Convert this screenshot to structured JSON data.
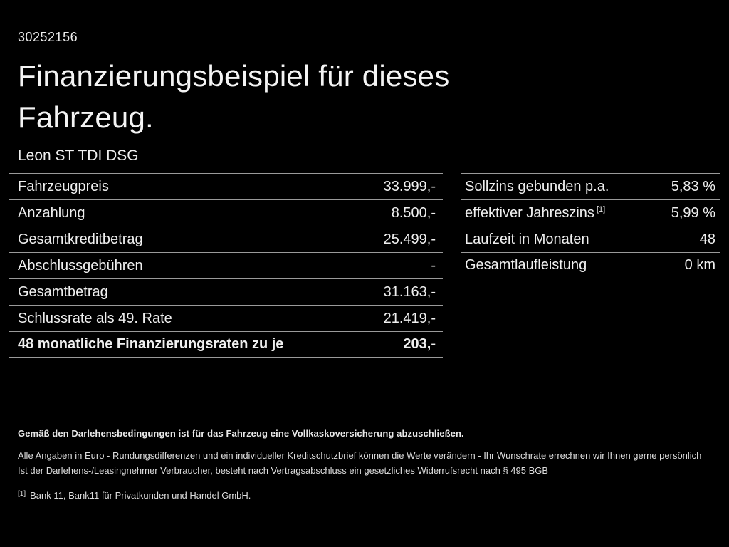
{
  "page": {
    "ref_number": "30252156",
    "title_line1": "Finanzierungsbeispiel für dieses",
    "title_line2": "Fahrzeug.",
    "vehicle_name": "Leon ST TDI DSG"
  },
  "financing_table": {
    "rows": [
      {
        "label": "Fahrzeugpreis",
        "value": "33.999,-"
      },
      {
        "label": "Anzahlung",
        "value": "8.500,-"
      },
      {
        "label": "Gesamtkreditbetrag",
        "value": "25.499,-"
      },
      {
        "label": "Abschlussgebühren",
        "value": "-"
      },
      {
        "label": "Gesamtbetrag",
        "value": "31.163,-"
      },
      {
        "label": "Schlussrate als 49. Rate",
        "value": "21.419,-"
      },
      {
        "label": "48 monatliche Finanzierungsraten zu je",
        "value": "203,-"
      }
    ]
  },
  "conditions_table": {
    "rows": [
      {
        "label": "Sollzins gebunden p.a.",
        "value": "5,83 %"
      },
      {
        "label": "effektiver Jahreszins",
        "label_sup": "[1]",
        "value": "5,99 %"
      },
      {
        "label": "Laufzeit in Monaten",
        "value": "48"
      },
      {
        "label": "Gesamtlaufleistung",
        "value": "0 km"
      }
    ]
  },
  "footnotes": {
    "insurance_note": "Gemäß den Darlehensbedingungen ist für das Fahrzeug eine Vollkaskoversicherung abzuschließen.",
    "disclaimer_line1": "Alle Angaben in Euro - Rundungsdifferenzen und ein individueller Kreditschutzbrief können die Werte verändern - Ihr Wunschrate errechnen wir Ihnen gerne persönlich",
    "disclaimer_line2": "Ist der Darlehens-/Leasingnehmer Verbraucher, besteht nach Vertragsabschluss ein gesetzliches Widerrufsrecht nach § 495 BGB",
    "bank_marker": "[1]",
    "bank_note": "Bank 11, Bank11 für Privatkunden und Handel GmbH."
  },
  "colors": {
    "background": "#000000",
    "text": "#efefef",
    "divider": "#9a9a9a"
  }
}
